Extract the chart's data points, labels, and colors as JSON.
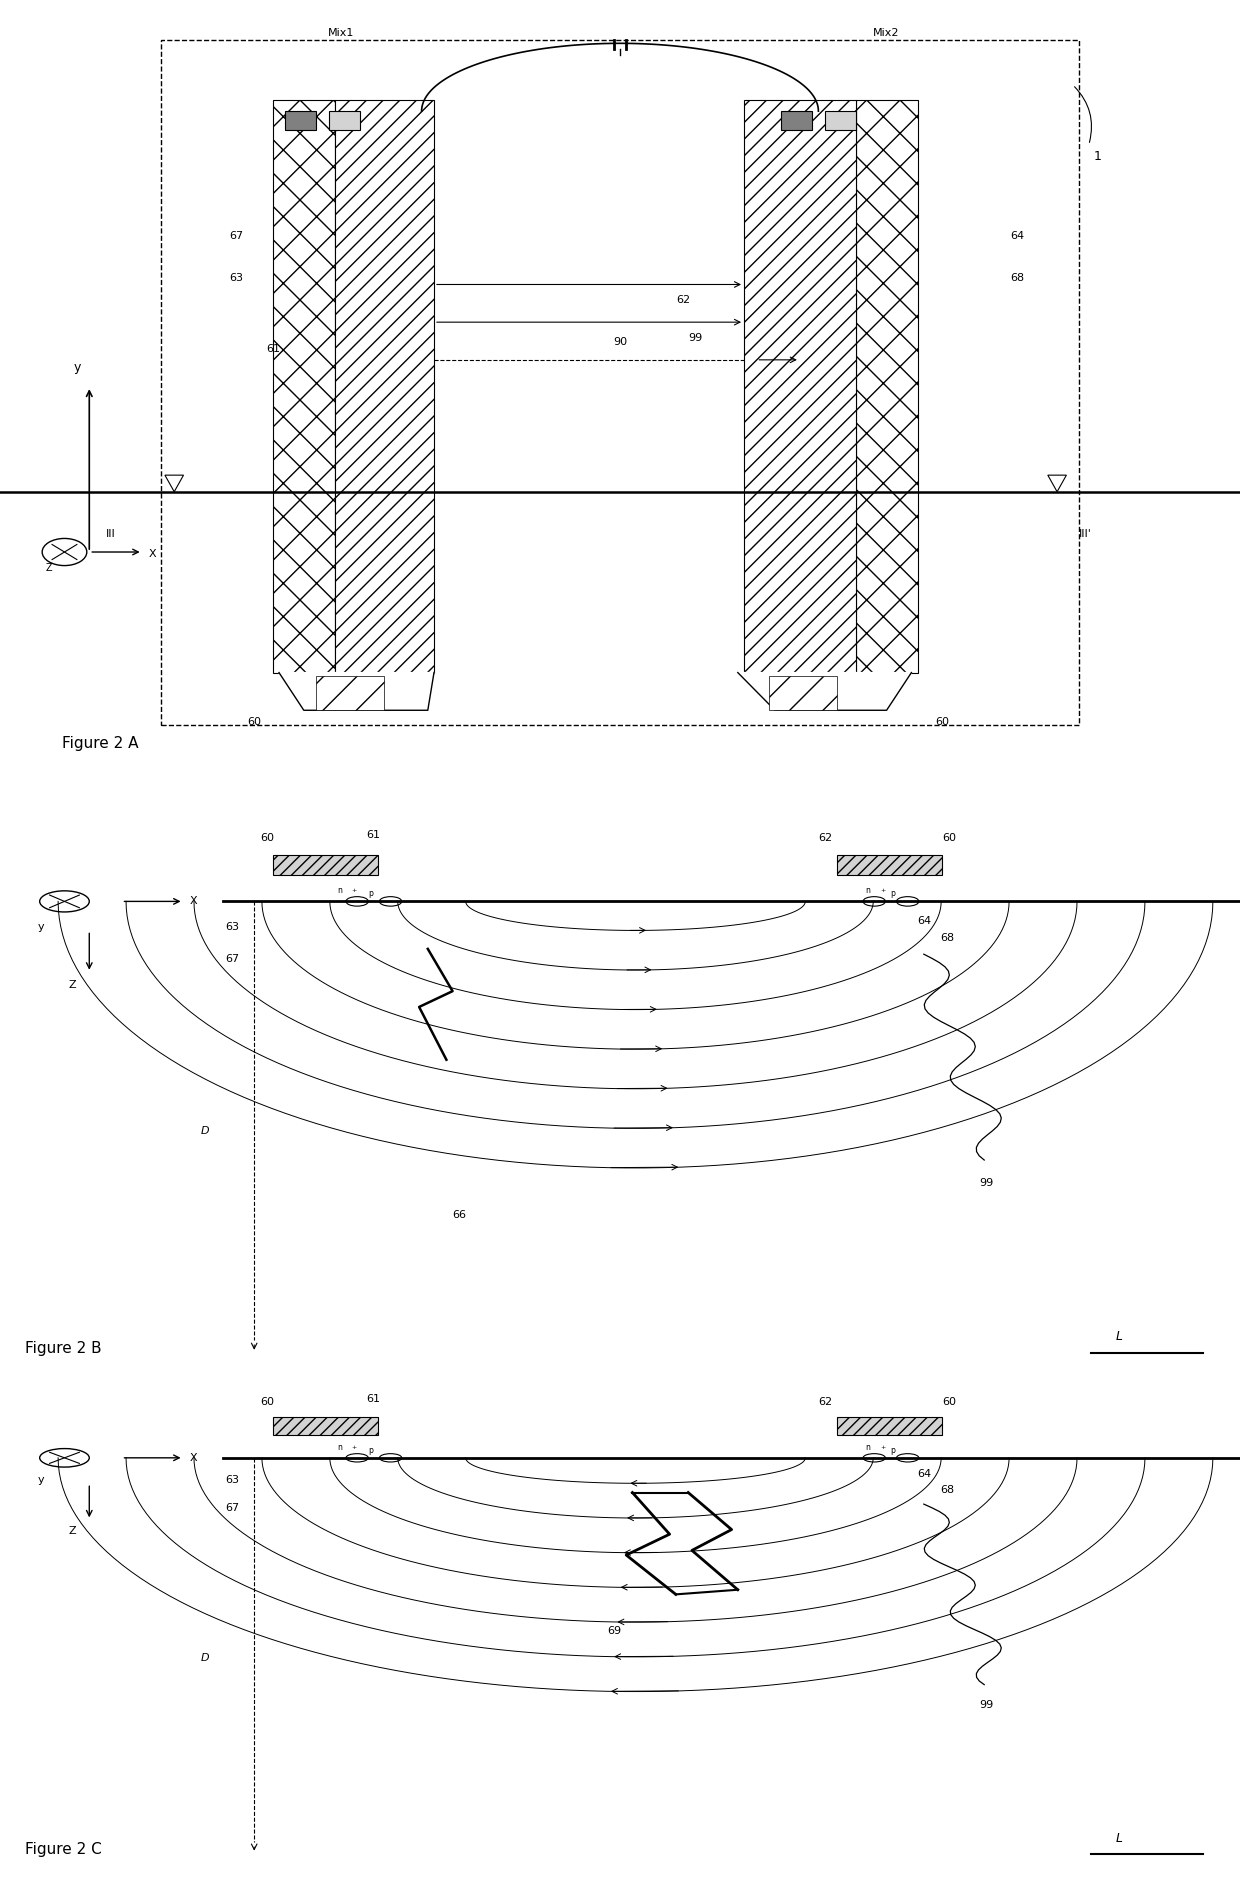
{
  "bg_color": "#ffffff",
  "line_color": "#000000",
  "fig_width": 12.4,
  "fig_height": 18.84,
  "figA_title": "Figure 2 A",
  "figB_title": "Figure 2 B",
  "figC_title": "Figure 2 C"
}
